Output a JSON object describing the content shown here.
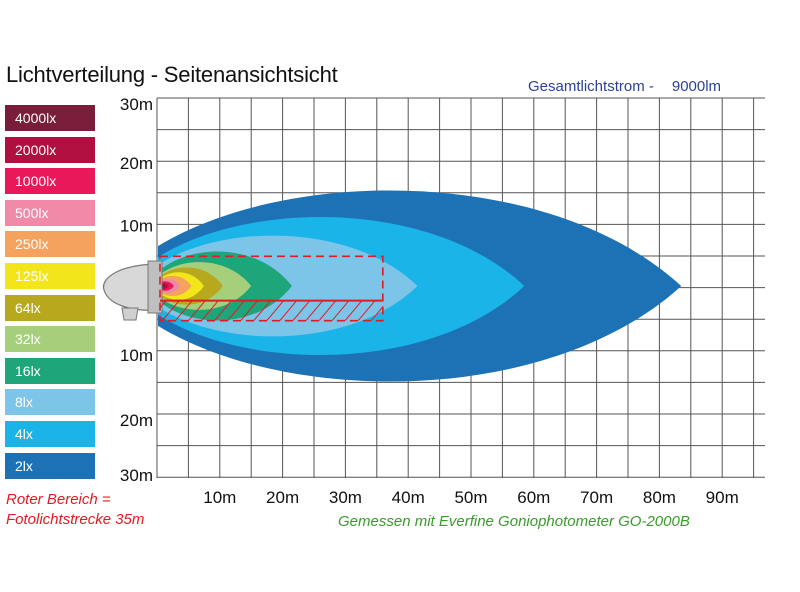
{
  "header": {
    "title": "Lichtverteilung - Seitenansichtsicht",
    "total_label": "Gesamtlichtstrom -",
    "total_value": "9000lm"
  },
  "legend": [
    {
      "label": "4000lx",
      "color": "#7a1d3a"
    },
    {
      "label": "2000lx",
      "color": "#b0103f"
    },
    {
      "label": "1000lx",
      "color": "#e8185a"
    },
    {
      "label": "500lx",
      "color": "#f08aa8"
    },
    {
      "label": "250lx",
      "color": "#f4a25e"
    },
    {
      "label": "125lx",
      "color": "#f2e51a"
    },
    {
      "label": "64lx",
      "color": "#b8a81e"
    },
    {
      "label": "32lx",
      "color": "#a6cf7c"
    },
    {
      "label": "16lx",
      "color": "#1fa57a"
    },
    {
      "label": "8lx",
      "color": "#7cc4e8"
    },
    {
      "label": "4lx",
      "color": "#1ab4e8"
    },
    {
      "label": "2lx",
      "color": "#1d72b6"
    }
  ],
  "notes": {
    "red_line1": "Roter Bereich =",
    "red_line2": "Fotolichtstrecke 35m",
    "measured": "Gemessen mit Everfine Goniophotometer GO-2000B"
  },
  "chart_data": {
    "type": "heatmap",
    "title": "Lichtverteilung - Seitenansichtsicht",
    "x_ticks": [
      "10m",
      "20m",
      "30m",
      "40m",
      "50m",
      "60m",
      "70m",
      "80m",
      "90m"
    ],
    "y_ticks": [
      "30m",
      "20m",
      "10m",
      "10m",
      "20m",
      "30m"
    ],
    "xlim": [
      0,
      100
    ],
    "ylim": [
      -30,
      30
    ],
    "photo_zone": {
      "x_max": 35,
      "y_top": 5,
      "y_bottom": -2
    },
    "isolux": [
      {
        "lux": "2lx",
        "reach": 83,
        "half_height": 18,
        "color": "#1d72b6"
      },
      {
        "lux": "4lx",
        "reach": 58,
        "half_height": 13,
        "color": "#1ab4e8"
      },
      {
        "lux": "8lx",
        "reach": 41,
        "half_height": 9.5,
        "color": "#7cc4e8"
      },
      {
        "lux": "16lx",
        "reach": 21,
        "half_height": 6.5,
        "color": "#1fa57a"
      },
      {
        "lux": "32lx",
        "reach": 14.5,
        "half_height": 4.5,
        "color": "#a6cf7c"
      },
      {
        "lux": "64lx",
        "reach": 10,
        "half_height": 3.5,
        "color": "#b8a81e"
      },
      {
        "lux": "125lx",
        "reach": 7,
        "half_height": 2.6,
        "color": "#f2e51a"
      },
      {
        "lux": "250lx",
        "reach": 5,
        "half_height": 1.9,
        "color": "#f4a25e"
      },
      {
        "lux": "500lx",
        "reach": 3.2,
        "half_height": 1.3,
        "color": "#f08aa8"
      },
      {
        "lux": "1000lx",
        "reach": 2.2,
        "half_height": 0.9,
        "color": "#e8185a"
      },
      {
        "lux": "2000lx",
        "reach": 1.4,
        "half_height": 0.6,
        "color": "#b0103f"
      },
      {
        "lux": "4000lx",
        "reach": 0.8,
        "half_height": 0.35,
        "color": "#7a1d3a"
      }
    ]
  }
}
